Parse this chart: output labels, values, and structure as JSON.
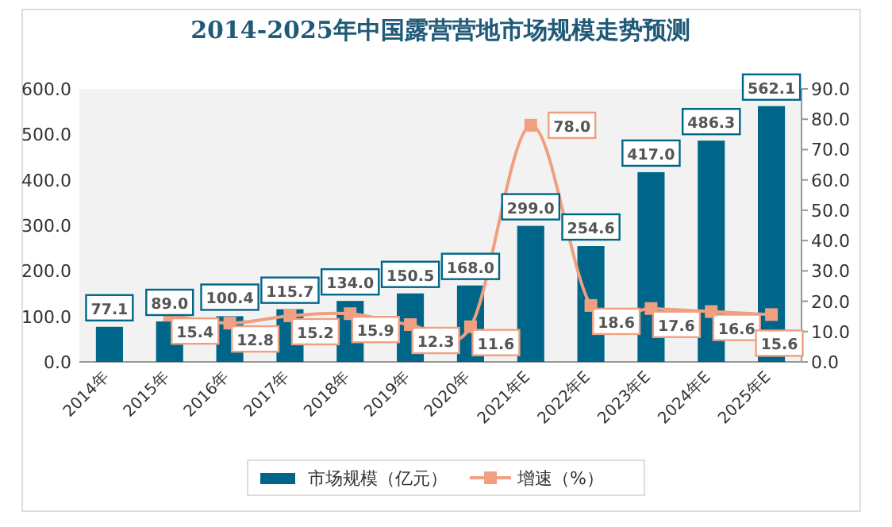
{
  "chart_data": {
    "type": "bar",
    "title": "2014-2025年中国露营营地市场规模走势预测",
    "categories": [
      "2014年",
      "2015年",
      "2016年",
      "2017年",
      "2018年",
      "2019年",
      "2020年",
      "2021年E",
      "2022年E",
      "2023年E",
      "2024年E",
      "2025年E"
    ],
    "series": [
      {
        "name": "市场规模（亿元）",
        "color": "#006689",
        "values": [
          77.1,
          89.0,
          100.4,
          115.7,
          134.0,
          150.5,
          168.0,
          299.0,
          254.6,
          417.0,
          486.3,
          562.1
        ],
        "value_labels": [
          "77.1",
          "89.0",
          "100.4",
          "115.7",
          "134.0",
          "150.5",
          "168.0",
          "299.0",
          "254.6",
          "417.0",
          "486.3",
          "562.1"
        ]
      },
      {
        "name": "增速（%）",
        "type": "line",
        "axis": "y2",
        "color": "#f0a080",
        "marker": "square",
        "values": [
          null,
          15.4,
          12.8,
          15.2,
          15.9,
          12.3,
          11.6,
          78.0,
          18.6,
          17.6,
          16.6,
          15.6
        ],
        "value_labels": [
          null,
          "15.4",
          "12.8",
          "15.2",
          "15.9",
          "12.3",
          "11.6",
          "78.0",
          "18.6",
          "17.6",
          "16.6",
          "15.6"
        ]
      }
    ],
    "ylim": [
      0,
      600
    ],
    "yticks": [
      {
        "value": 0,
        "label": "0.0"
      },
      {
        "value": 100,
        "label": "100.0"
      },
      {
        "value": 200,
        "label": "200.0"
      },
      {
        "value": 300,
        "label": "300.0"
      },
      {
        "value": 400,
        "label": "400.0"
      },
      {
        "value": 500,
        "label": "500.0"
      },
      {
        "value": 600,
        "label": "600.0"
      }
    ],
    "y2lim": [
      0,
      90
    ],
    "y2ticks": [
      {
        "value": 0,
        "label": "0.0"
      },
      {
        "value": 10,
        "label": "10.0"
      },
      {
        "value": 20,
        "label": "20.0"
      },
      {
        "value": 30,
        "label": "30.0"
      },
      {
        "value": 40,
        "label": "40.0"
      },
      {
        "value": 50,
        "label": "50.0"
      },
      {
        "value": 60,
        "label": "60.0"
      },
      {
        "value": 70,
        "label": "70.0"
      },
      {
        "value": 80,
        "label": "80.0"
      },
      {
        "value": 90,
        "label": "90.0"
      }
    ],
    "legend": "bottom",
    "grid": false
  }
}
